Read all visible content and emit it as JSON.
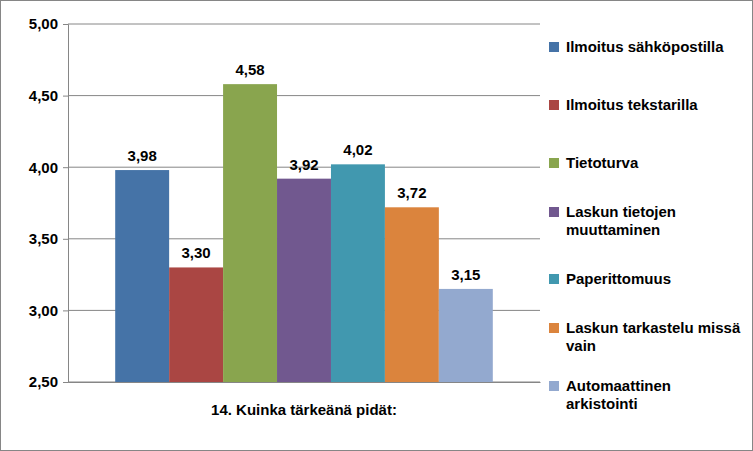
{
  "chart_data": {
    "type": "bar",
    "categories": [
      "14. Kuinka tärkeänä pidät:"
    ],
    "series": [
      {
        "name": "Ilmoitus sähköpostilla",
        "color": "#4573a7",
        "values": [
          3.98
        ],
        "value_labels": [
          "3,98"
        ]
      },
      {
        "name": "Ilmoitus tekstarilla",
        "color": "#aa4643",
        "values": [
          3.3
        ],
        "value_labels": [
          "3,30"
        ]
      },
      {
        "name": "Tietoturva",
        "color": "#89a54e",
        "values": [
          4.58
        ],
        "value_labels": [
          "4,58"
        ]
      },
      {
        "name": "Laskun tietojen muuttaminen",
        "color": "#71588f",
        "values": [
          3.92
        ],
        "value_labels": [
          "3,92"
        ]
      },
      {
        "name": "Paperittomuus",
        "color": "#4198af",
        "values": [
          4.02
        ],
        "value_labels": [
          "4,02"
        ]
      },
      {
        "name": "Laskun tarkastelu missä vain",
        "color": "#db843d",
        "values": [
          3.72
        ],
        "value_labels": [
          "3,72"
        ]
      },
      {
        "name": "Automaattinen arkistointi",
        "color": "#93a9cf",
        "values": [
          3.15
        ],
        "value_labels": [
          "3,15"
        ]
      }
    ],
    "ylim": [
      2.5,
      5.0
    ],
    "yticks": [
      {
        "value": 2.5,
        "label": "2,50"
      },
      {
        "value": 3.0,
        "label": "3,00"
      },
      {
        "value": 3.5,
        "label": "3,50"
      },
      {
        "value": 4.0,
        "label": "4,00"
      },
      {
        "value": 4.5,
        "label": "4,50"
      },
      {
        "value": 5.0,
        "label": "5,00"
      }
    ],
    "grid": true,
    "legend": "right",
    "data_labels": true
  }
}
